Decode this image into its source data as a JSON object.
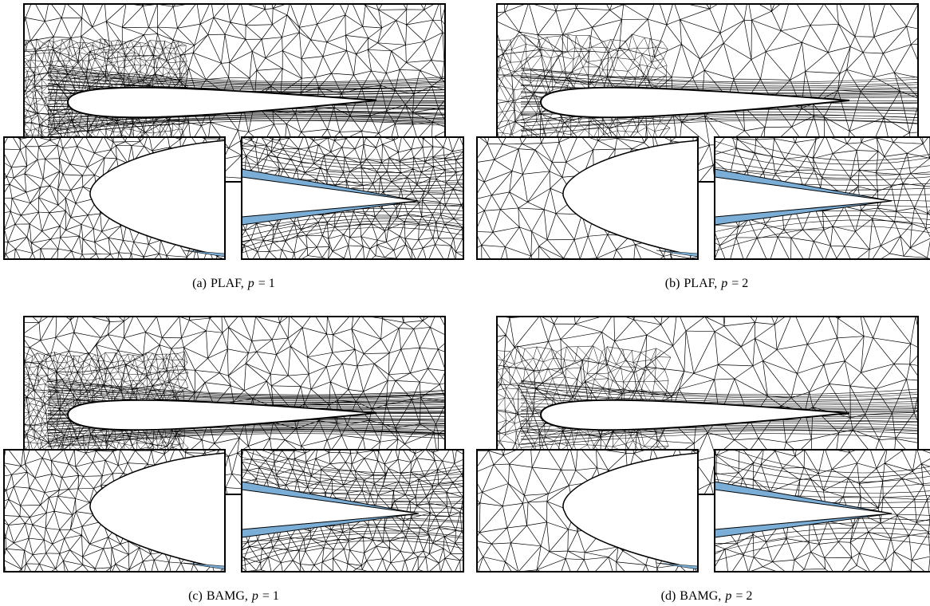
{
  "panels": [
    {
      "label": "(a)",
      "method": "PLAF,",
      "variable": "p",
      "equals": "= 1"
    },
    {
      "label": "(b)",
      "method": "PLAF,",
      "variable": "p",
      "equals": "= 2"
    },
    {
      "label": "(c)",
      "method": "BAMG,",
      "variable": "p",
      "equals": "= 1"
    },
    {
      "label": "(d)",
      "method": "BAMG,",
      "variable": "p",
      "equals": "= 2"
    }
  ]
}
